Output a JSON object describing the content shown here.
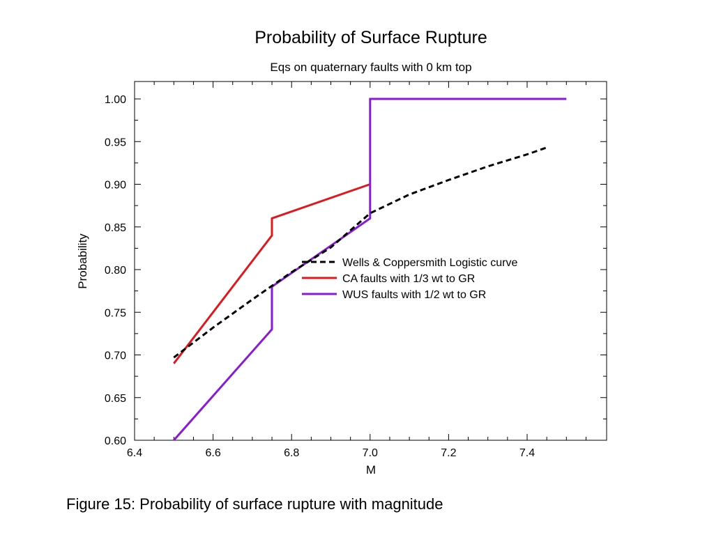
{
  "caption": "Figure 15: Probability of surface rupture with magnitude",
  "chart_data": {
    "type": "line",
    "title": "Probability of Surface Rupture",
    "subtitle": "Eqs on quaternary faults with 0 km top",
    "xlabel": "M",
    "ylabel": "Probability",
    "xlim": [
      6.4,
      7.58
    ],
    "ylim": [
      0.6,
      1.02
    ],
    "xticks": [
      6.4,
      6.6,
      6.8,
      7.0,
      7.2,
      7.4
    ],
    "xtick_labels": [
      "6.4",
      "6.6",
      "6.8",
      "7.0",
      "7.2",
      "7.4"
    ],
    "yticks": [
      0.6,
      0.65,
      0.7,
      0.75,
      0.8,
      0.85,
      0.9,
      0.95,
      1.0
    ],
    "ytick_labels": [
      "0.60",
      "0.65",
      "0.70",
      "0.75",
      "0.80",
      "0.85",
      "0.90",
      "0.95",
      "1.00"
    ],
    "grid": false,
    "legend_position": "center-right",
    "series": [
      {
        "name": "Wells & Coppersmith Logistic curve",
        "color": "#000000",
        "dashed": true,
        "x": [
          6.5,
          6.6,
          6.7,
          6.8,
          6.9,
          7.0,
          7.1,
          7.2,
          7.3,
          7.4,
          7.45
        ],
        "y": [
          0.697,
          0.732,
          0.765,
          0.797,
          0.826,
          0.866,
          0.888,
          0.905,
          0.921,
          0.935,
          0.943
        ]
      },
      {
        "name": "CA faults with 1/3 wt to GR",
        "color": "#e0181c",
        "dashed": false,
        "x": [
          6.5,
          6.75,
          6.75,
          7.0,
          7.0
        ],
        "y": [
          0.69,
          0.84,
          0.86,
          0.9,
          0.9
        ]
      },
      {
        "name": "WUS faults with 1/2 wt to GR",
        "color": "#8a1ad6",
        "dashed": false,
        "x": [
          6.5,
          6.75,
          6.75,
          7.0,
          7.0,
          7.5
        ],
        "y": [
          0.6,
          0.73,
          0.78,
          0.86,
          1.0,
          1.0
        ]
      }
    ]
  }
}
